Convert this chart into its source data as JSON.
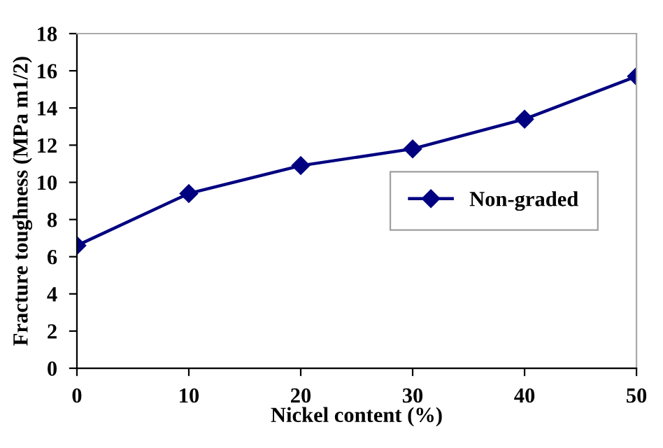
{
  "chart_data": {
    "type": "line",
    "xlabel": "Nickel content (%)",
    "ylabel": "Fracture toughness (MPa m1/2)",
    "x": [
      0,
      10,
      20,
      30,
      40,
      50
    ],
    "series": [
      {
        "name": "Non-graded",
        "color": "#000080",
        "values": [
          6.6,
          9.4,
          10.9,
          11.8,
          13.4,
          15.7
        ]
      }
    ],
    "xlim": [
      0,
      50
    ],
    "xticks": [
      0,
      10,
      20,
      30,
      40,
      50
    ],
    "ylim": [
      0,
      18
    ],
    "yticks": [
      0,
      2,
      4,
      6,
      8,
      10,
      12,
      14,
      16,
      18
    ],
    "marker": "diamond",
    "line_style": "solid",
    "grid": false,
    "legend": "right"
  }
}
